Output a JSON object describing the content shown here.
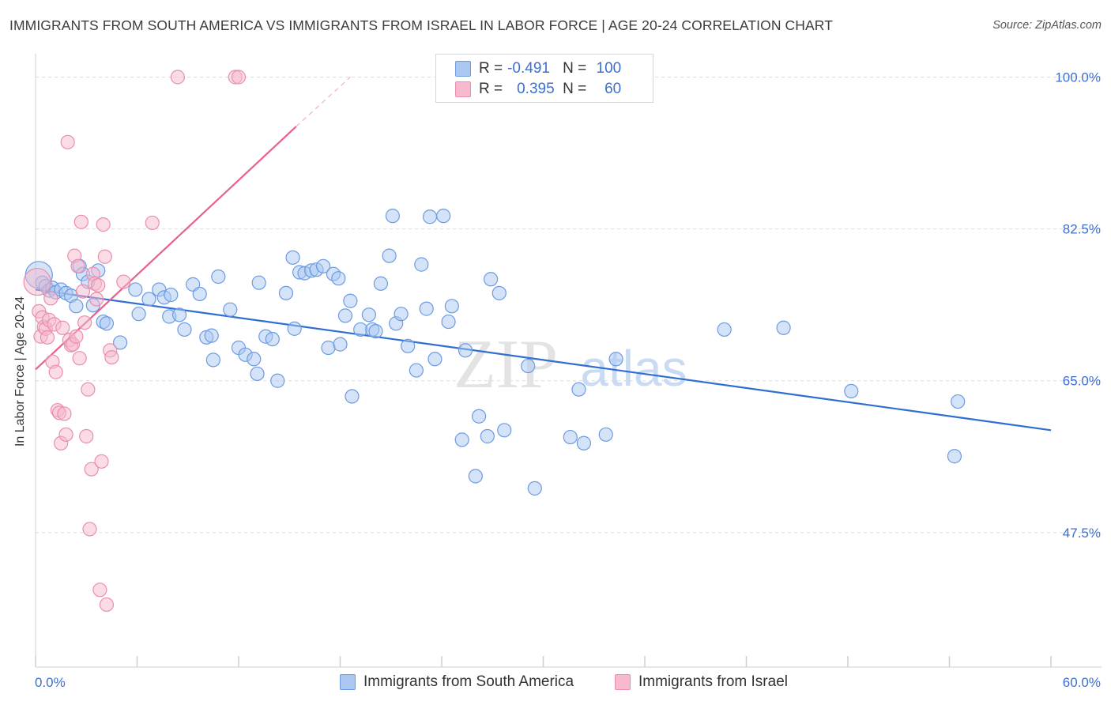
{
  "title": "IMMIGRANTS FROM SOUTH AMERICA VS IMMIGRANTS FROM ISRAEL IN LABOR FORCE | AGE 20-24 CORRELATION CHART",
  "source": "Source: ZipAtlas.com",
  "watermark": {
    "zip": "ZIP",
    "atlas": "atlas"
  },
  "legend": {
    "rows": [
      {
        "r_label": "R =",
        "r_value": "-0.491",
        "n_label": "N =",
        "n_value": "100"
      },
      {
        "r_label": "R =",
        "r_value": "0.395",
        "n_label": "N =",
        "n_value": "60"
      }
    ]
  },
  "colors": {
    "blue_fill": "#aac8f2",
    "blue_stroke": "#6d9be0",
    "blue_line": "#2f6fd0",
    "pink_fill": "#f6b9cd",
    "pink_stroke": "#ea8eac",
    "pink_line": "#e8608c",
    "tick_label": "#3d6fd1",
    "grid": "#dcdcdc"
  },
  "chart_data": {
    "type": "scatter",
    "title": "IMMIGRANTS FROM SOUTH AMERICA VS IMMIGRANTS FROM ISRAEL IN LABOR FORCE | AGE 20-24 CORRELATION CHART",
    "xlabel": "",
    "ylabel": "In Labor Force | Age 20-24",
    "xlim": [
      0,
      60
    ],
    "ylim": [
      32,
      102
    ],
    "x_tick_labels": [
      "0.0%",
      "60.0%"
    ],
    "x_ticks": [
      0,
      6,
      12,
      18,
      24,
      30,
      36,
      42,
      48,
      54,
      60
    ],
    "y_ticks": [
      47.5,
      65.0,
      82.5,
      100.0
    ],
    "y_tick_labels": [
      "47.5%",
      "65.0%",
      "82.5%",
      "100.0%"
    ],
    "grid": "horizontal dashed",
    "legend_position": "bottom",
    "series": [
      {
        "name": "Immigrants from South America",
        "color": "#6d9be0",
        "trend": {
          "x": [
            0,
            60
          ],
          "y": [
            75.5,
            59.3
          ]
        },
        "points": [
          [
            0.2,
            77.2
          ],
          [
            0.4,
            76.3
          ],
          [
            0.6,
            75.9
          ],
          [
            0.8,
            75.4
          ],
          [
            1.0,
            75.7
          ],
          [
            1.2,
            75.2
          ],
          [
            1.5,
            75.5
          ],
          [
            1.8,
            75.1
          ],
          [
            2.1,
            74.8
          ],
          [
            2.4,
            73.6
          ],
          [
            2.6,
            78.2
          ],
          [
            2.8,
            77.3
          ],
          [
            3.1,
            76.4
          ],
          [
            3.4,
            73.7
          ],
          [
            3.7,
            77.7
          ],
          [
            4.0,
            71.8
          ],
          [
            4.2,
            71.6
          ],
          [
            5.0,
            69.4
          ],
          [
            5.9,
            75.5
          ],
          [
            6.1,
            72.7
          ],
          [
            6.7,
            74.4
          ],
          [
            7.3,
            75.5
          ],
          [
            7.6,
            74.6
          ],
          [
            7.9,
            72.4
          ],
          [
            8.0,
            74.9
          ],
          [
            8.5,
            72.6
          ],
          [
            8.8,
            70.9
          ],
          [
            9.3,
            76.1
          ],
          [
            9.7,
            75.0
          ],
          [
            10.1,
            70.0
          ],
          [
            10.4,
            70.2
          ],
          [
            10.5,
            67.4
          ],
          [
            10.8,
            77.0
          ],
          [
            11.5,
            73.2
          ],
          [
            12.0,
            68.8
          ],
          [
            12.4,
            68.0
          ],
          [
            12.9,
            67.5
          ],
          [
            13.1,
            65.8
          ],
          [
            13.2,
            76.3
          ],
          [
            13.6,
            70.1
          ],
          [
            14.0,
            69.8
          ],
          [
            14.3,
            65.0
          ],
          [
            14.8,
            75.1
          ],
          [
            15.2,
            79.2
          ],
          [
            15.3,
            71.0
          ],
          [
            15.6,
            77.5
          ],
          [
            15.9,
            77.4
          ],
          [
            16.3,
            77.7
          ],
          [
            16.6,
            77.8
          ],
          [
            17.0,
            78.2
          ],
          [
            17.3,
            68.8
          ],
          [
            17.6,
            77.3
          ],
          [
            17.9,
            76.8
          ],
          [
            18.0,
            69.2
          ],
          [
            18.3,
            72.5
          ],
          [
            18.6,
            74.2
          ],
          [
            18.7,
            63.2
          ],
          [
            19.2,
            70.9
          ],
          [
            19.7,
            72.6
          ],
          [
            19.9,
            70.9
          ],
          [
            20.1,
            70.7
          ],
          [
            20.4,
            76.2
          ],
          [
            20.9,
            79.4
          ],
          [
            21.1,
            84.0
          ],
          [
            21.3,
            71.6
          ],
          [
            21.6,
            72.7
          ],
          [
            22.0,
            69.0
          ],
          [
            22.5,
            66.2
          ],
          [
            22.8,
            78.4
          ],
          [
            23.1,
            73.3
          ],
          [
            23.3,
            83.9
          ],
          [
            23.6,
            67.5
          ],
          [
            24.1,
            84.0
          ],
          [
            24.4,
            71.8
          ],
          [
            24.6,
            73.6
          ],
          [
            25.2,
            58.2
          ],
          [
            25.4,
            68.5
          ],
          [
            26.0,
            54.0
          ],
          [
            26.2,
            60.9
          ],
          [
            26.7,
            58.6
          ],
          [
            26.9,
            76.7
          ],
          [
            27.4,
            75.1
          ],
          [
            27.7,
            59.3
          ],
          [
            29.1,
            66.7
          ],
          [
            29.5,
            52.6
          ],
          [
            31.6,
            58.5
          ],
          [
            32.1,
            64.0
          ],
          [
            32.4,
            57.8
          ],
          [
            33.7,
            58.8
          ],
          [
            34.3,
            67.5
          ],
          [
            40.7,
            70.9
          ],
          [
            44.2,
            71.1
          ],
          [
            48.2,
            63.8
          ],
          [
            54.3,
            56.3
          ],
          [
            54.5,
            62.6
          ]
        ]
      },
      {
        "name": "Immigrants from Israel",
        "color": "#ea8eac",
        "trend": {
          "x": [
            0,
            15.4
          ],
          "y": [
            66.3,
            94.3
          ]
        },
        "trend_dashed": {
          "x": [
            15.4,
            18.6
          ],
          "y": [
            94.3,
            100.0
          ]
        },
        "points": [
          [
            0.1,
            76.4
          ],
          [
            0.2,
            73.0
          ],
          [
            0.3,
            70.1
          ],
          [
            0.4,
            72.3
          ],
          [
            0.5,
            71.2
          ],
          [
            0.6,
            71.0
          ],
          [
            0.7,
            70.0
          ],
          [
            0.8,
            72.0
          ],
          [
            0.9,
            74.5
          ],
          [
            1.0,
            67.2
          ],
          [
            1.1,
            71.5
          ],
          [
            1.2,
            66.0
          ],
          [
            1.3,
            61.6
          ],
          [
            1.4,
            61.3
          ],
          [
            1.5,
            57.8
          ],
          [
            1.6,
            71.1
          ],
          [
            1.7,
            61.2
          ],
          [
            1.8,
            58.8
          ],
          [
            1.9,
            92.5
          ],
          [
            2.0,
            69.7
          ],
          [
            2.1,
            69.1
          ],
          [
            2.2,
            69.2
          ],
          [
            2.3,
            79.4
          ],
          [
            2.4,
            70.1
          ],
          [
            2.5,
            78.2
          ],
          [
            2.6,
            67.6
          ],
          [
            2.7,
            83.3
          ],
          [
            2.8,
            75.3
          ],
          [
            2.9,
            71.7
          ],
          [
            3.0,
            58.6
          ],
          [
            3.1,
            64.0
          ],
          [
            3.2,
            47.9
          ],
          [
            3.3,
            54.8
          ],
          [
            3.4,
            77.3
          ],
          [
            3.5,
            76.2
          ],
          [
            3.6,
            74.4
          ],
          [
            3.7,
            76.0
          ],
          [
            3.8,
            40.9
          ],
          [
            3.9,
            55.7
          ],
          [
            4.0,
            83.0
          ],
          [
            4.1,
            79.3
          ],
          [
            4.2,
            39.2
          ],
          [
            4.4,
            68.5
          ],
          [
            4.5,
            67.7
          ],
          [
            5.2,
            76.4
          ],
          [
            6.9,
            83.2
          ],
          [
            8.4,
            100.0
          ],
          [
            11.8,
            100.0
          ],
          [
            12.0,
            100.0
          ]
        ]
      }
    ]
  }
}
